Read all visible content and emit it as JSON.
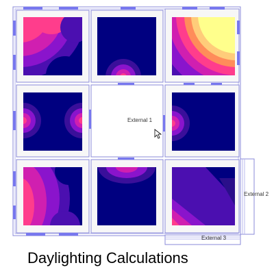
{
  "page": {
    "title": "Daylighting Calculations"
  },
  "labels": {
    "external_1": "External 1",
    "external_2": "External 2",
    "external_3": "External 3"
  },
  "colors": {
    "background": "#ffffff",
    "wall_outline": "#8a8ad8",
    "window": "#7777ee",
    "room_fill": "#f7f7f7",
    "level_low": "#000080",
    "level_mid_low": "#4b0fb0",
    "level_mid": "#8a14cc",
    "level_high_mid": "#d01fb0",
    "level_high": "#ff3d8c",
    "level_very_high": "#ff8c5a",
    "level_peak": "#ffff8c"
  },
  "rooms": [
    {
      "id": "room-top-left",
      "pattern": "corner-top-left-pink"
    },
    {
      "id": "room-top-center",
      "pattern": "bottom-center-bloom"
    },
    {
      "id": "room-top-right",
      "pattern": "corner-top-right-yellow"
    },
    {
      "id": "room-middle-left",
      "pattern": "left-right-blooms"
    },
    {
      "id": "room-middle-center",
      "pattern": "empty"
    },
    {
      "id": "room-middle-right",
      "pattern": "left-bloom"
    },
    {
      "id": "room-bottom-left",
      "pattern": "left-edge-pink"
    },
    {
      "id": "room-bottom-center",
      "pattern": "top-edge-purple"
    },
    {
      "id": "room-bottom-right",
      "pattern": "diagonal-purple"
    }
  ]
}
